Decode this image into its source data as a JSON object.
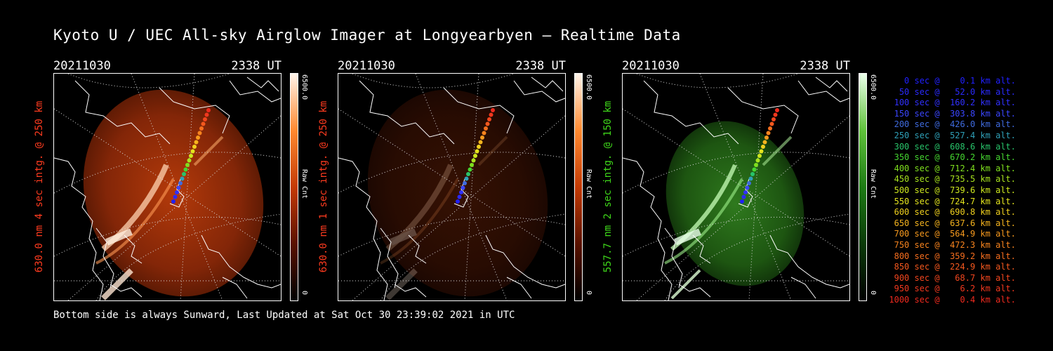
{
  "title": "Kyoto U / UEC All-sky Airglow Imager at Longyearbyen — Realtime Data",
  "panels": [
    {
      "date": "20211030",
      "time": "2338 UT",
      "ylabel": "630.0 nm 4 sec intg. @ 250 km",
      "label_color": "#ff3b1f",
      "cbar_max": "6500.0",
      "cbar_min": "0",
      "cbar_unit": "Raw Cnt",
      "palette": "red",
      "brightness": 1.0
    },
    {
      "date": "20211030",
      "time": "2338 UT",
      "ylabel": "630.0 nm 1 sec intg. @ 250 km",
      "label_color": "#ff3b1f",
      "cbar_max": "6500.0",
      "cbar_min": "0",
      "cbar_unit": "Raw Cnt",
      "palette": "red",
      "brightness": 0.3
    },
    {
      "date": "20211030",
      "time": "2338 UT",
      "ylabel": "557.7 nm 2 sec intg. @ 150 km",
      "label_color": "#3fd81a",
      "cbar_max": "6500.0",
      "cbar_min": "0",
      "cbar_unit": "Raw Cnt",
      "palette": "green",
      "brightness": 1.0
    }
  ],
  "legend": [
    {
      "text": "   0 sec @    0.1 km alt.",
      "color": "#2020ff"
    },
    {
      "text": "  50 sec @   52.0 km alt.",
      "color": "#2a2aff"
    },
    {
      "text": " 100 sec @  160.2 km alt.",
      "color": "#3030ff"
    },
    {
      "text": " 150 sec @  303.8 km alt.",
      "color": "#3a46ff"
    },
    {
      "text": " 200 sec @  426.0 km alt.",
      "color": "#3f6bdf"
    },
    {
      "text": " 250 sec @  527.4 km alt.",
      "color": "#2fa0b8"
    },
    {
      "text": " 300 sec @  608.6 km alt.",
      "color": "#28c46a"
    },
    {
      "text": " 350 sec @  670.2 km alt.",
      "color": "#45d630"
    },
    {
      "text": " 400 sec @  712.4 km alt.",
      "color": "#7fe01e"
    },
    {
      "text": " 450 sec @  735.5 km alt.",
      "color": "#a8e41e"
    },
    {
      "text": " 500 sec @  739.6 km alt.",
      "color": "#cde71e"
    },
    {
      "text": " 550 sec @  724.7 km alt.",
      "color": "#e4e41e"
    },
    {
      "text": " 600 sec @  690.8 km alt.",
      "color": "#f0d01e"
    },
    {
      "text": " 650 sec @  637.6 km alt.",
      "color": "#f6b41e"
    },
    {
      "text": " 700 sec @  564.9 km alt.",
      "color": "#f89a1e"
    },
    {
      "text": " 750 sec @  472.3 km alt.",
      "color": "#f8841e"
    },
    {
      "text": " 800 sec @  359.2 km alt.",
      "color": "#f66e1e"
    },
    {
      "text": " 850 sec @  224.9 km alt.",
      "color": "#f4581e"
    },
    {
      "text": " 900 sec @   68.7 km alt.",
      "color": "#f2461e"
    },
    {
      "text": " 950 sec @    6.2 km alt.",
      "color": "#f0381e"
    },
    {
      "text": "1000 sec @    0.4 km alt.",
      "color": "#ee2a1e"
    }
  ],
  "footer": "Bottom side is always Sunward, Last Updated at Sat Oct 30 23:39:02 2021 in UTC"
}
